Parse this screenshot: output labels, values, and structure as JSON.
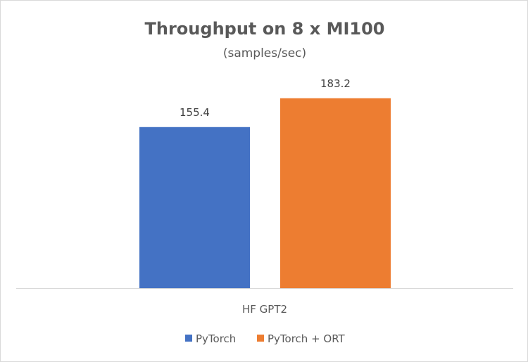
{
  "chart_data": {
    "type": "bar",
    "title": "Throughput on 8 x MI100",
    "subtitle": "(samples/sec)",
    "categories": [
      "HF GPT2"
    ],
    "series": [
      {
        "name": "PyTorch",
        "values": [
          155.4
        ],
        "color": "#4472C4"
      },
      {
        "name": "PyTorch + ORT",
        "values": [
          183.2
        ],
        "color": "#ED7D31"
      }
    ],
    "xlabel": "",
    "ylabel": "",
    "ylim": [
      0,
      200
    ],
    "grid": false,
    "legend": "bottom",
    "data_labels": true
  }
}
